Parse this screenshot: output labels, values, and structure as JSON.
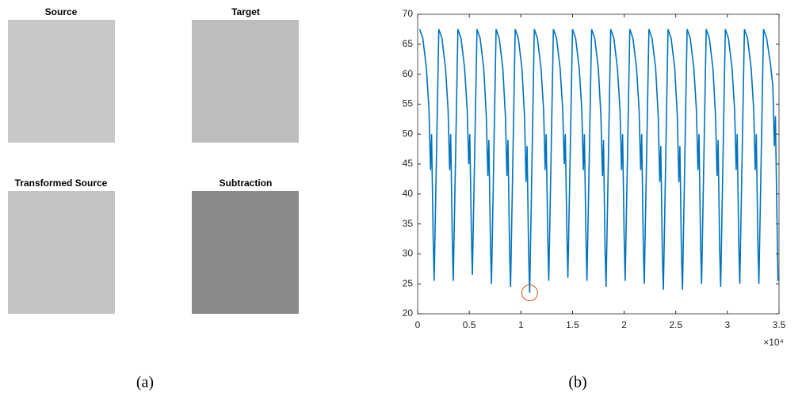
{
  "panel_a": {
    "titles": [
      "Source",
      "Target",
      "Transformed Source",
      "Subtraction"
    ],
    "caption": "(a)"
  },
  "chart_data": {
    "type": "line",
    "caption": "(b)",
    "x_multiplier": "×10⁴",
    "xlim": [
      0,
      35000
    ],
    "xticks": [
      {
        "value": 0,
        "label": "0"
      },
      {
        "value": 5000,
        "label": "0.5"
      },
      {
        "value": 10000,
        "label": "1"
      },
      {
        "value": 15000,
        "label": "1.5"
      },
      {
        "value": 20000,
        "label": "2"
      },
      {
        "value": 25000,
        "label": "2.5"
      },
      {
        "value": 30000,
        "label": "3"
      },
      {
        "value": 35000,
        "label": "3.5"
      }
    ],
    "ylim": [
      20,
      70
    ],
    "yticks": [
      20,
      25,
      30,
      35,
      40,
      45,
      50,
      55,
      60,
      65,
      70
    ],
    "x": [
      200,
      500,
      850,
      1100,
      1250,
      1350,
      1500,
      1600,
      2050,
      2350,
      2700,
      2950,
      3100,
      3200,
      3350,
      3450,
      3900,
      4200,
      4550,
      4800,
      4950,
      5050,
      5200,
      5300,
      5750,
      6050,
      6400,
      6650,
      6800,
      6900,
      7050,
      7150,
      7600,
      7900,
      8250,
      8500,
      8650,
      8750,
      8900,
      9000,
      9450,
      9750,
      10100,
      10350,
      10500,
      10600,
      10750,
      10850,
      11300,
      11600,
      11950,
      12200,
      12350,
      12450,
      12600,
      12700,
      13150,
      13450,
      13800,
      14050,
      14200,
      14300,
      14450,
      14550,
      15000,
      15300,
      15650,
      15900,
      16050,
      16150,
      16300,
      16400,
      16850,
      17150,
      17500,
      17750,
      17900,
      18000,
      18150,
      18250,
      18700,
      19000,
      19350,
      19600,
      19750,
      19850,
      20000,
      20100,
      20550,
      20850,
      21200,
      21450,
      21600,
      21700,
      21850,
      21950,
      22400,
      22700,
      23050,
      23300,
      23450,
      23550,
      23700,
      23800,
      24250,
      24550,
      24900,
      25150,
      25300,
      25400,
      25550,
      25650,
      26100,
      26400,
      26750,
      27000,
      27150,
      27250,
      27400,
      27500,
      27950,
      28250,
      28600,
      28850,
      29000,
      29100,
      29250,
      29350,
      29800,
      30100,
      30450,
      30700,
      30850,
      30950,
      31100,
      31200,
      31650,
      31950,
      32300,
      32550,
      32700,
      32800,
      32950,
      33050,
      33500,
      33800,
      34150,
      34400,
      34550,
      34650,
      34800,
      34900
    ],
    "series": [
      {
        "color": "#0072bd",
        "values": [
          67.5,
          66,
          61,
          54,
          44,
          50,
          33,
          25.5,
          67.5,
          66,
          61,
          54,
          44,
          50,
          33,
          25.5,
          67.5,
          66,
          61,
          54,
          45,
          50,
          34,
          26.5,
          67.5,
          66,
          61,
          53,
          43,
          49,
          32,
          25,
          67.5,
          66,
          61,
          53,
          43,
          49,
          31,
          24.5,
          67.5,
          66,
          61,
          53,
          42,
          48,
          30,
          23.5,
          67.5,
          66,
          61,
          54,
          44,
          50,
          33,
          25.5,
          67.5,
          66,
          61,
          54,
          45,
          50,
          34,
          26,
          67.5,
          66,
          61,
          54,
          44,
          50,
          33,
          25.5,
          67.5,
          66,
          61,
          53,
          43,
          49,
          31,
          24.5,
          67.5,
          66,
          61,
          54,
          44,
          50,
          33,
          25.5,
          67.5,
          66,
          61,
          54,
          44,
          50,
          32,
          25,
          67.5,
          66,
          61,
          53,
          42,
          48,
          30,
          24,
          67.5,
          66,
          61,
          53,
          42,
          48,
          30,
          24,
          67.5,
          66,
          61,
          54,
          44,
          50,
          32,
          25,
          67.5,
          66,
          61,
          53,
          43,
          49,
          31,
          24.5,
          67.5,
          66,
          61,
          54,
          44,
          50,
          32,
          25,
          67.5,
          66,
          61,
          54,
          44,
          50,
          32,
          25,
          67.5,
          66,
          62,
          58,
          48,
          53,
          36,
          25.5
        ]
      }
    ],
    "marker": {
      "x": 10850,
      "y": 23.5,
      "color": "#d95319"
    }
  }
}
